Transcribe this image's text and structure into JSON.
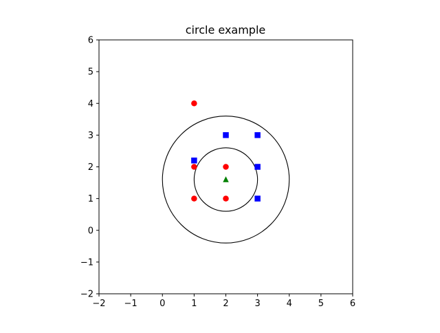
{
  "chart_data": {
    "type": "scatter",
    "title": "circle example",
    "xlabel": "",
    "ylabel": "",
    "xlim": [
      -2,
      6
    ],
    "ylim": [
      -2,
      6
    ],
    "xticks": [
      -2,
      -1,
      0,
      1,
      2,
      3,
      4,
      5,
      6
    ],
    "yticks": [
      -2,
      -1,
      0,
      1,
      2,
      3,
      4,
      5,
      6
    ],
    "grid": false,
    "legend": "none",
    "series": [
      {
        "marker": "circle",
        "color": "#ff0000",
        "points": [
          [
            1,
            4
          ],
          [
            1,
            2
          ],
          [
            1,
            1
          ],
          [
            2,
            2
          ],
          [
            2,
            1
          ]
        ]
      },
      {
        "marker": "square",
        "color": "#0000ff",
        "points": [
          [
            1,
            2.2
          ],
          [
            2,
            3
          ],
          [
            3,
            3
          ],
          [
            3,
            2
          ],
          [
            3,
            1
          ]
        ]
      },
      {
        "marker": "triangle",
        "color": "#008000",
        "points": [
          [
            2,
            1.6
          ]
        ]
      }
    ],
    "circles": [
      {
        "center": [
          2,
          1.6
        ],
        "radius": 1.0,
        "color": "#000000"
      },
      {
        "center": [
          2,
          1.6
        ],
        "radius": 2.0,
        "color": "#000000"
      }
    ]
  }
}
